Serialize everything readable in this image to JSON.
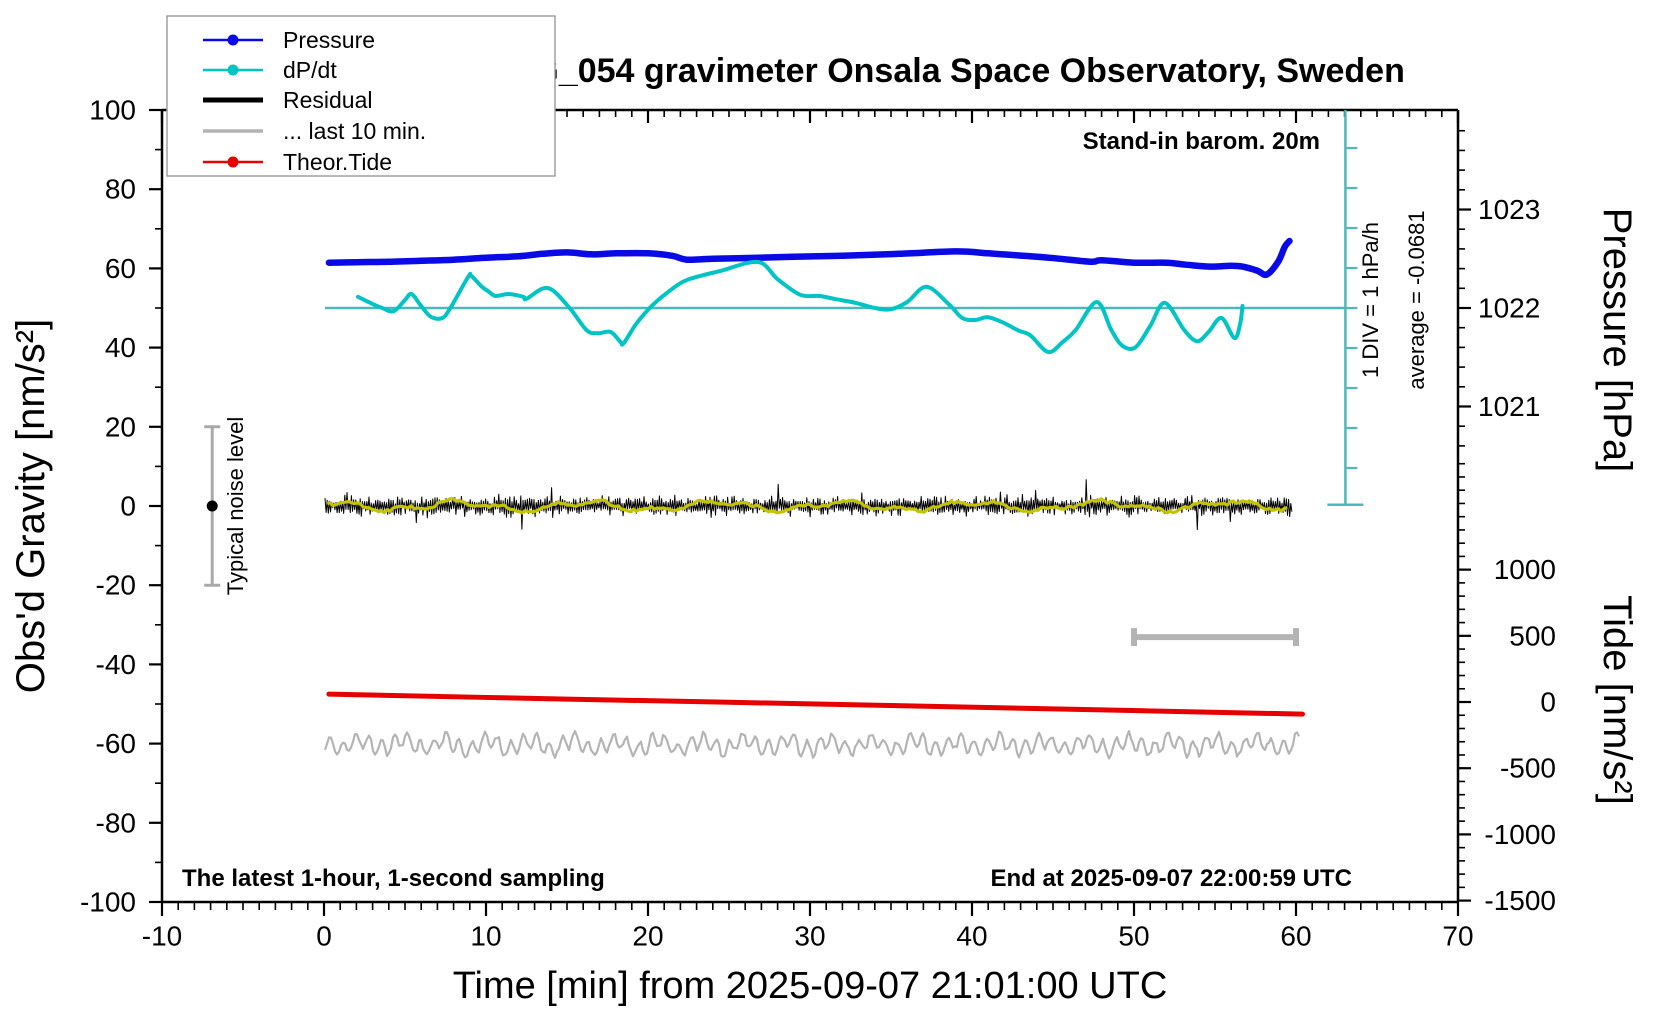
{
  "title": "SCG_054 gravimeter Onsala Space Observatory, Sweden",
  "annotations": {
    "barom": "Stand-in barom. 20m",
    "sampling": "The latest 1-hour, 1-second sampling",
    "end": "End at 2025-09-07 22:00:59 UTC",
    "div_note": "1 DIV = 1 hPa/h",
    "average": "average = -0.0681",
    "noise_level": "Typical noise level"
  },
  "legend": [
    {
      "label": "Pressure",
      "color": "#0a0ae6",
      "line_width": 2.5,
      "dot": true
    },
    {
      "label": "dP/dt",
      "color": "#00c4c4",
      "line_width": 2.5,
      "dot": true
    },
    {
      "label": "Residual",
      "color": "#000000",
      "line_width": 5,
      "dot": false
    },
    {
      "label": "... last 10 min.",
      "color": "#b4b4b4",
      "line_width": 3.5,
      "dot": false
    },
    {
      "label": "Theor.Tide",
      "color": "#e60000",
      "line_width": 2.5,
      "dot": true
    }
  ],
  "chart_data": {
    "type": "line",
    "title": "SCG_054 gravimeter Onsala Space Observatory, Sweden",
    "x_axis": {
      "label": "Time [min] from 2025-09-07 21:01:00 UTC",
      "range": [
        -10,
        70
      ],
      "major_ticks": [
        -10,
        0,
        10,
        20,
        30,
        40,
        50,
        60,
        70
      ],
      "minor_step": 1
    },
    "y_left": {
      "label": "Obs'd Gravity [nm/s²]",
      "range": [
        -100,
        100
      ],
      "major_ticks": [
        -100,
        -80,
        -60,
        -40,
        -20,
        0,
        20,
        40,
        60,
        80,
        100
      ],
      "minor_step": 10
    },
    "y_pressure": {
      "label": "Pressure [hPa]",
      "ticks": [
        1021,
        1022,
        1023
      ],
      "minor_step": 0.2,
      "ref_value": 1022,
      "ref_gravity": 50,
      "gravity_per_unit": 24.87
    },
    "y_tide": {
      "label": "Tide [nm/s²]",
      "ticks": [
        -1500,
        -1000,
        -500,
        0,
        500,
        1000
      ],
      "minor_step": 100,
      "ref_value": 0,
      "ref_gravity": -49.5,
      "gravity_per_unit": 0.03343
    },
    "dpdt_axis": {
      "units": "hPa/h",
      "ref_value": 0,
      "ref_gravity": 50,
      "gravity_per_unit": 10.1,
      "average": -0.0681
    },
    "series": [
      {
        "id": "pressure",
        "label": "Pressure",
        "axis": "pressure",
        "color": "#0a0ae6",
        "width": 6.5,
        "points": [
          [
            0.3,
            1022.46
          ],
          [
            2,
            1022.465
          ],
          [
            4,
            1022.47
          ],
          [
            6,
            1022.48
          ],
          [
            8,
            1022.49
          ],
          [
            10,
            1022.51
          ],
          [
            12,
            1022.525
          ],
          [
            13.5,
            1022.55
          ],
          [
            15,
            1022.565
          ],
          [
            16.5,
            1022.545
          ],
          [
            18,
            1022.555
          ],
          [
            20,
            1022.555
          ],
          [
            21.5,
            1022.53
          ],
          [
            22.4,
            1022.49
          ],
          [
            24,
            1022.5
          ],
          [
            26.8,
            1022.51
          ],
          [
            29,
            1022.52
          ],
          [
            32,
            1022.53
          ],
          [
            35.5,
            1022.55
          ],
          [
            39,
            1022.575
          ],
          [
            41,
            1022.555
          ],
          [
            42.3,
            1022.54
          ],
          [
            44.8,
            1022.51
          ],
          [
            47.3,
            1022.47
          ],
          [
            48,
            1022.485
          ],
          [
            50,
            1022.46
          ],
          [
            52,
            1022.46
          ],
          [
            53.2,
            1022.44
          ],
          [
            54.7,
            1022.42
          ],
          [
            56,
            1022.43
          ],
          [
            56.7,
            1022.42
          ],
          [
            57.6,
            1022.38
          ],
          [
            58.2,
            1022.34
          ],
          [
            58.9,
            1022.47
          ],
          [
            59.3,
            1022.62
          ],
          [
            59.6,
            1022.68
          ]
        ]
      },
      {
        "id": "dpdt",
        "label": "dP/dt",
        "axis": "dpdt",
        "color": "#00c4c4",
        "width": 4,
        "points": [
          [
            2.1,
            0.28
          ],
          [
            3.0,
            0.1
          ],
          [
            3.6,
            0.0
          ],
          [
            4.3,
            -0.08
          ],
          [
            5.0,
            0.2
          ],
          [
            5.4,
            0.35
          ],
          [
            6.0,
            0.05
          ],
          [
            6.6,
            -0.22
          ],
          [
            7.3,
            -0.25
          ],
          [
            7.8,
            0.0
          ],
          [
            8.9,
            0.78
          ],
          [
            9.1,
            0.8
          ],
          [
            9.7,
            0.55
          ],
          [
            10.2,
            0.4
          ],
          [
            10.6,
            0.3
          ],
          [
            11.4,
            0.35
          ],
          [
            12.3,
            0.28
          ],
          [
            12.5,
            0.23
          ],
          [
            13.8,
            0.5
          ],
          [
            15.1,
            0.03
          ],
          [
            16.2,
            -0.55
          ],
          [
            16.9,
            -0.63
          ],
          [
            17.7,
            -0.6
          ],
          [
            18.3,
            -0.85
          ],
          [
            18.5,
            -0.88
          ],
          [
            19.3,
            -0.38
          ],
          [
            20.3,
            0.08
          ],
          [
            21.3,
            0.42
          ],
          [
            22.4,
            0.7
          ],
          [
            24.5,
            0.93
          ],
          [
            26.8,
            1.15
          ],
          [
            28.0,
            0.72
          ],
          [
            29.4,
            0.33
          ],
          [
            30.6,
            0.3
          ],
          [
            31.6,
            0.22
          ],
          [
            32.8,
            0.13
          ],
          [
            34.0,
            0.0
          ],
          [
            35.0,
            -0.03
          ],
          [
            36.0,
            0.15
          ],
          [
            37.2,
            0.53
          ],
          [
            38.6,
            0.08
          ],
          [
            39.4,
            -0.25
          ],
          [
            40.2,
            -0.3
          ],
          [
            41.0,
            -0.23
          ],
          [
            42.0,
            -0.38
          ],
          [
            42.9,
            -0.57
          ],
          [
            43.6,
            -0.68
          ],
          [
            44.7,
            -1.1
          ],
          [
            45.6,
            -0.85
          ],
          [
            46.4,
            -0.55
          ],
          [
            47.7,
            0.15
          ],
          [
            48.6,
            -0.55
          ],
          [
            49.3,
            -0.95
          ],
          [
            50.1,
            -0.98
          ],
          [
            51.0,
            -0.45
          ],
          [
            51.9,
            0.13
          ],
          [
            53.1,
            -0.55
          ],
          [
            53.9,
            -0.83
          ],
          [
            54.6,
            -0.6
          ],
          [
            55.4,
            -0.25
          ],
          [
            56.2,
            -0.75
          ],
          [
            56.55,
            -0.4
          ],
          [
            56.7,
            0.05
          ]
        ]
      },
      {
        "id": "residual",
        "label": "Residual",
        "axis": "gravity",
        "color": "#000000",
        "width": 1,
        "synth": {
          "center": 0,
          "base_amp": 2.3,
          "spike_amp": 6.3,
          "spike_prob": 0.028,
          "t_range": [
            0.06,
            59.75
          ]
        }
      },
      {
        "id": "residual_smooth",
        "label": "",
        "axis": "gravity",
        "color": "#c3c300",
        "width": 3.2,
        "synth": {
          "center": 0,
          "base_amp": 0.95,
          "t_range": [
            0.2,
            59.6
          ]
        }
      },
      {
        "id": "last10",
        "label": "... last 10 min.",
        "axis": "gravity",
        "color": "#b4b4b4",
        "width": 2.2,
        "synth": {
          "center": -60.3,
          "base_amp": 3.2,
          "t_range": [
            0.06,
            60.2
          ]
        }
      },
      {
        "id": "theor_tide",
        "label": "Theor.Tide",
        "axis": "tide",
        "color": "#e60000",
        "width": 5,
        "points": [
          [
            0.3,
            60
          ],
          [
            15,
            22
          ],
          [
            30,
            -14
          ],
          [
            45,
            -52
          ],
          [
            60.4,
            -91
          ]
        ]
      }
    ],
    "markers": {
      "zero_line": {
        "axis": "dpdt",
        "value": 0,
        "t_range": [
          0.06,
          63.05
        ],
        "color": "#4db8b8"
      },
      "div_bar": {
        "t": 63.05,
        "g_top": 100,
        "g_bottom": 0.3,
        "div_gravity": 10.1,
        "color": "#4db8b8"
      },
      "noise_bar": {
        "t": -6.9,
        "g_span": [
          -20,
          20
        ],
        "dot_g": 0,
        "color": "#a9a9a9"
      },
      "last10_bar": {
        "t_range": [
          50,
          60
        ],
        "g": -33.1,
        "color": "#b4b4b4"
      }
    }
  }
}
